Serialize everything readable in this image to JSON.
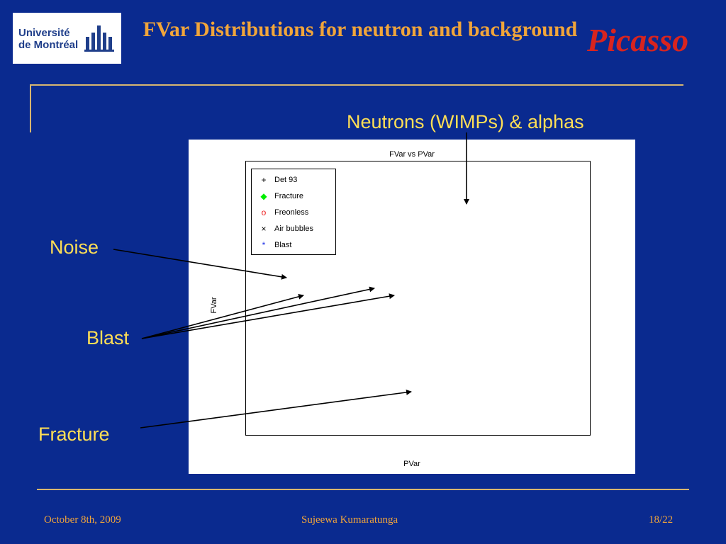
{
  "header": {
    "title": "FVar Distributions for neutron and background",
    "logo_left_text": [
      "Université",
      "de Montréal"
    ],
    "logo_right_text": "Picasso"
  },
  "annotations": {
    "neutrons": "Neutrons (WIMPs) & alphas",
    "noise": "Noise",
    "blast": "Blast",
    "fracture": "Fracture"
  },
  "plot": {
    "title": "FVar vs PVar",
    "xlabel": "PVar",
    "ylabel": "FVar",
    "legend": [
      {
        "label": "Det 93",
        "marker": "+",
        "color": "#000000"
      },
      {
        "label": "Fracture",
        "marker": "◆",
        "color": "#00ee00"
      },
      {
        "label": "Freonless",
        "marker": "o",
        "color": "#ee2020"
      },
      {
        "label": "Air bubbles",
        "marker": "×",
        "color": "#000000"
      },
      {
        "label": "Blast",
        "marker": "*",
        "color": "#1d2fe6"
      }
    ]
  },
  "footer": {
    "date": "October 8th, 2009",
    "author": "Sujeewa Kumaratunga",
    "page": "18/22"
  },
  "colors": {
    "background": "#0a2a8f",
    "gold": "#f1a53a",
    "annotation_yellow": "#ffdf55",
    "rule": "#d8b670"
  }
}
